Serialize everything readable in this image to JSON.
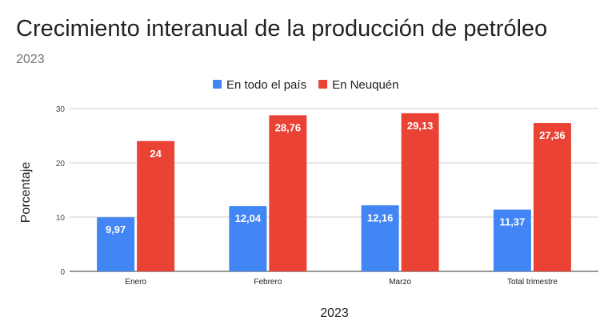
{
  "chart_data": {
    "type": "bar",
    "title": "Crecimiento interanual de la producción de petróleo",
    "subtitle": "2023",
    "xlabel": "2023",
    "ylabel": "Porcentaje",
    "ylim": [
      0,
      30
    ],
    "yticks": [
      "0",
      "10",
      "20",
      "30"
    ],
    "grid": true,
    "legend_position": "top",
    "categories": [
      "Enero",
      "Febrero",
      "Marzo",
      "Total trimestre"
    ],
    "series": [
      {
        "name": "En todo el país",
        "color": "#4285f4",
        "values": [
          9.97,
          12.04,
          12.16,
          11.37
        ],
        "labels": [
          "9,97",
          "12,04",
          "12,16",
          "11,37"
        ]
      },
      {
        "name": "En Neuquén",
        "color": "#ea4335",
        "values": [
          24,
          28.76,
          29.13,
          27.36
        ],
        "labels": [
          "24",
          "28,76",
          "29,13",
          "27,36"
        ]
      }
    ]
  }
}
